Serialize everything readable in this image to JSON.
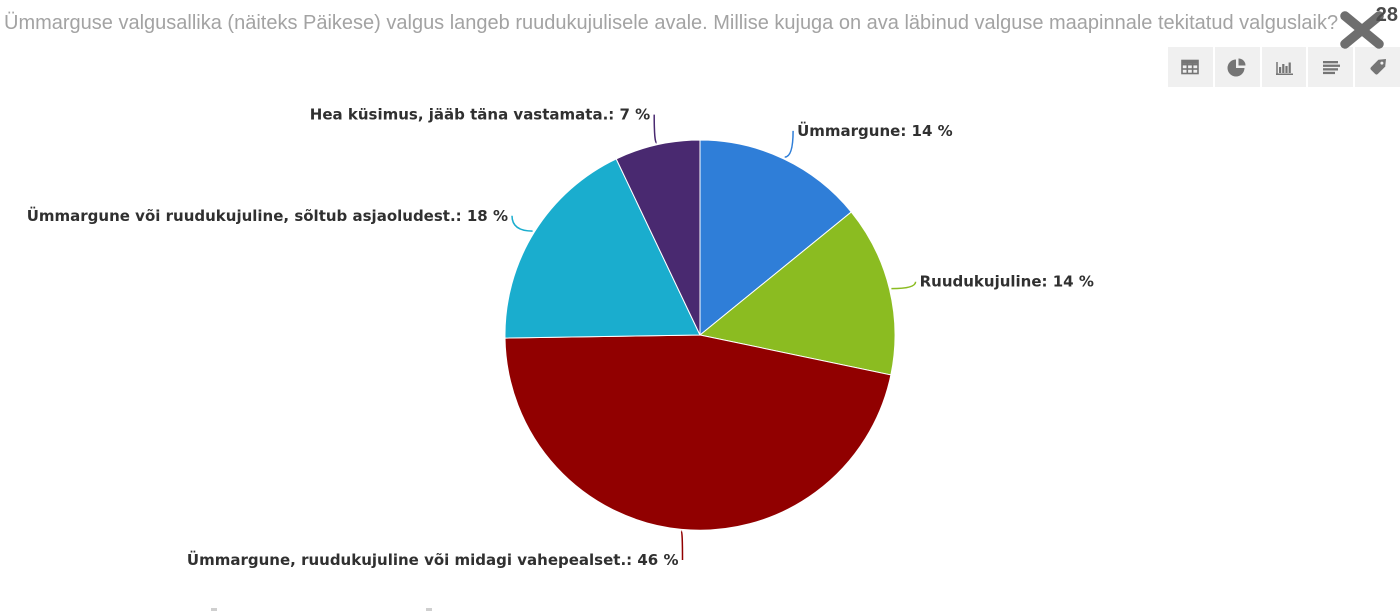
{
  "header": {
    "title": "Ümmarguse valgusallika (näiteks Päikese) valgus langeb ruudukujulisele avale. Millise kujuga on ava läbinud valguse maapinnale tekitatud valguslaik?",
    "question_number": "28"
  },
  "toolbar": {
    "buttons": [
      "table-view",
      "pie-chart-view",
      "column-chart-view",
      "rows-view",
      "tag-view"
    ]
  },
  "chart_data": {
    "type": "pie",
    "title": "",
    "unit": "%",
    "legend": false,
    "start_angle_deg": 0,
    "direction": "clockwise",
    "slices": [
      {
        "label": "Ümmargune",
        "value": 14,
        "display": "Ümmargune: 14 %",
        "color": "#2f7ed8"
      },
      {
        "label": "Ruudukujuline",
        "value": 14,
        "display": "Ruudukujuline: 14 %",
        "color": "#8bbc21"
      },
      {
        "label": "Ümmargune, ruudukujuline või midagi vahepealset.",
        "value": 46,
        "display": "Ümmargune, ruudukujuline või midagi vahepealset.: 46 %",
        "color": "#910000"
      },
      {
        "label": "Ümmargune või ruudukujuline, sõltub asjaoludest.",
        "value": 18,
        "display": "Ümmargune või ruudukujuline, sõltub asjaoludest.: 18 %",
        "color": "#1aadce"
      },
      {
        "label": "Hea küsimus, jääb täna vastamata.",
        "value": 7,
        "display": "Hea küsimus, jääb täna vastamata.: 7 %",
        "color": "#492970"
      }
    ]
  }
}
